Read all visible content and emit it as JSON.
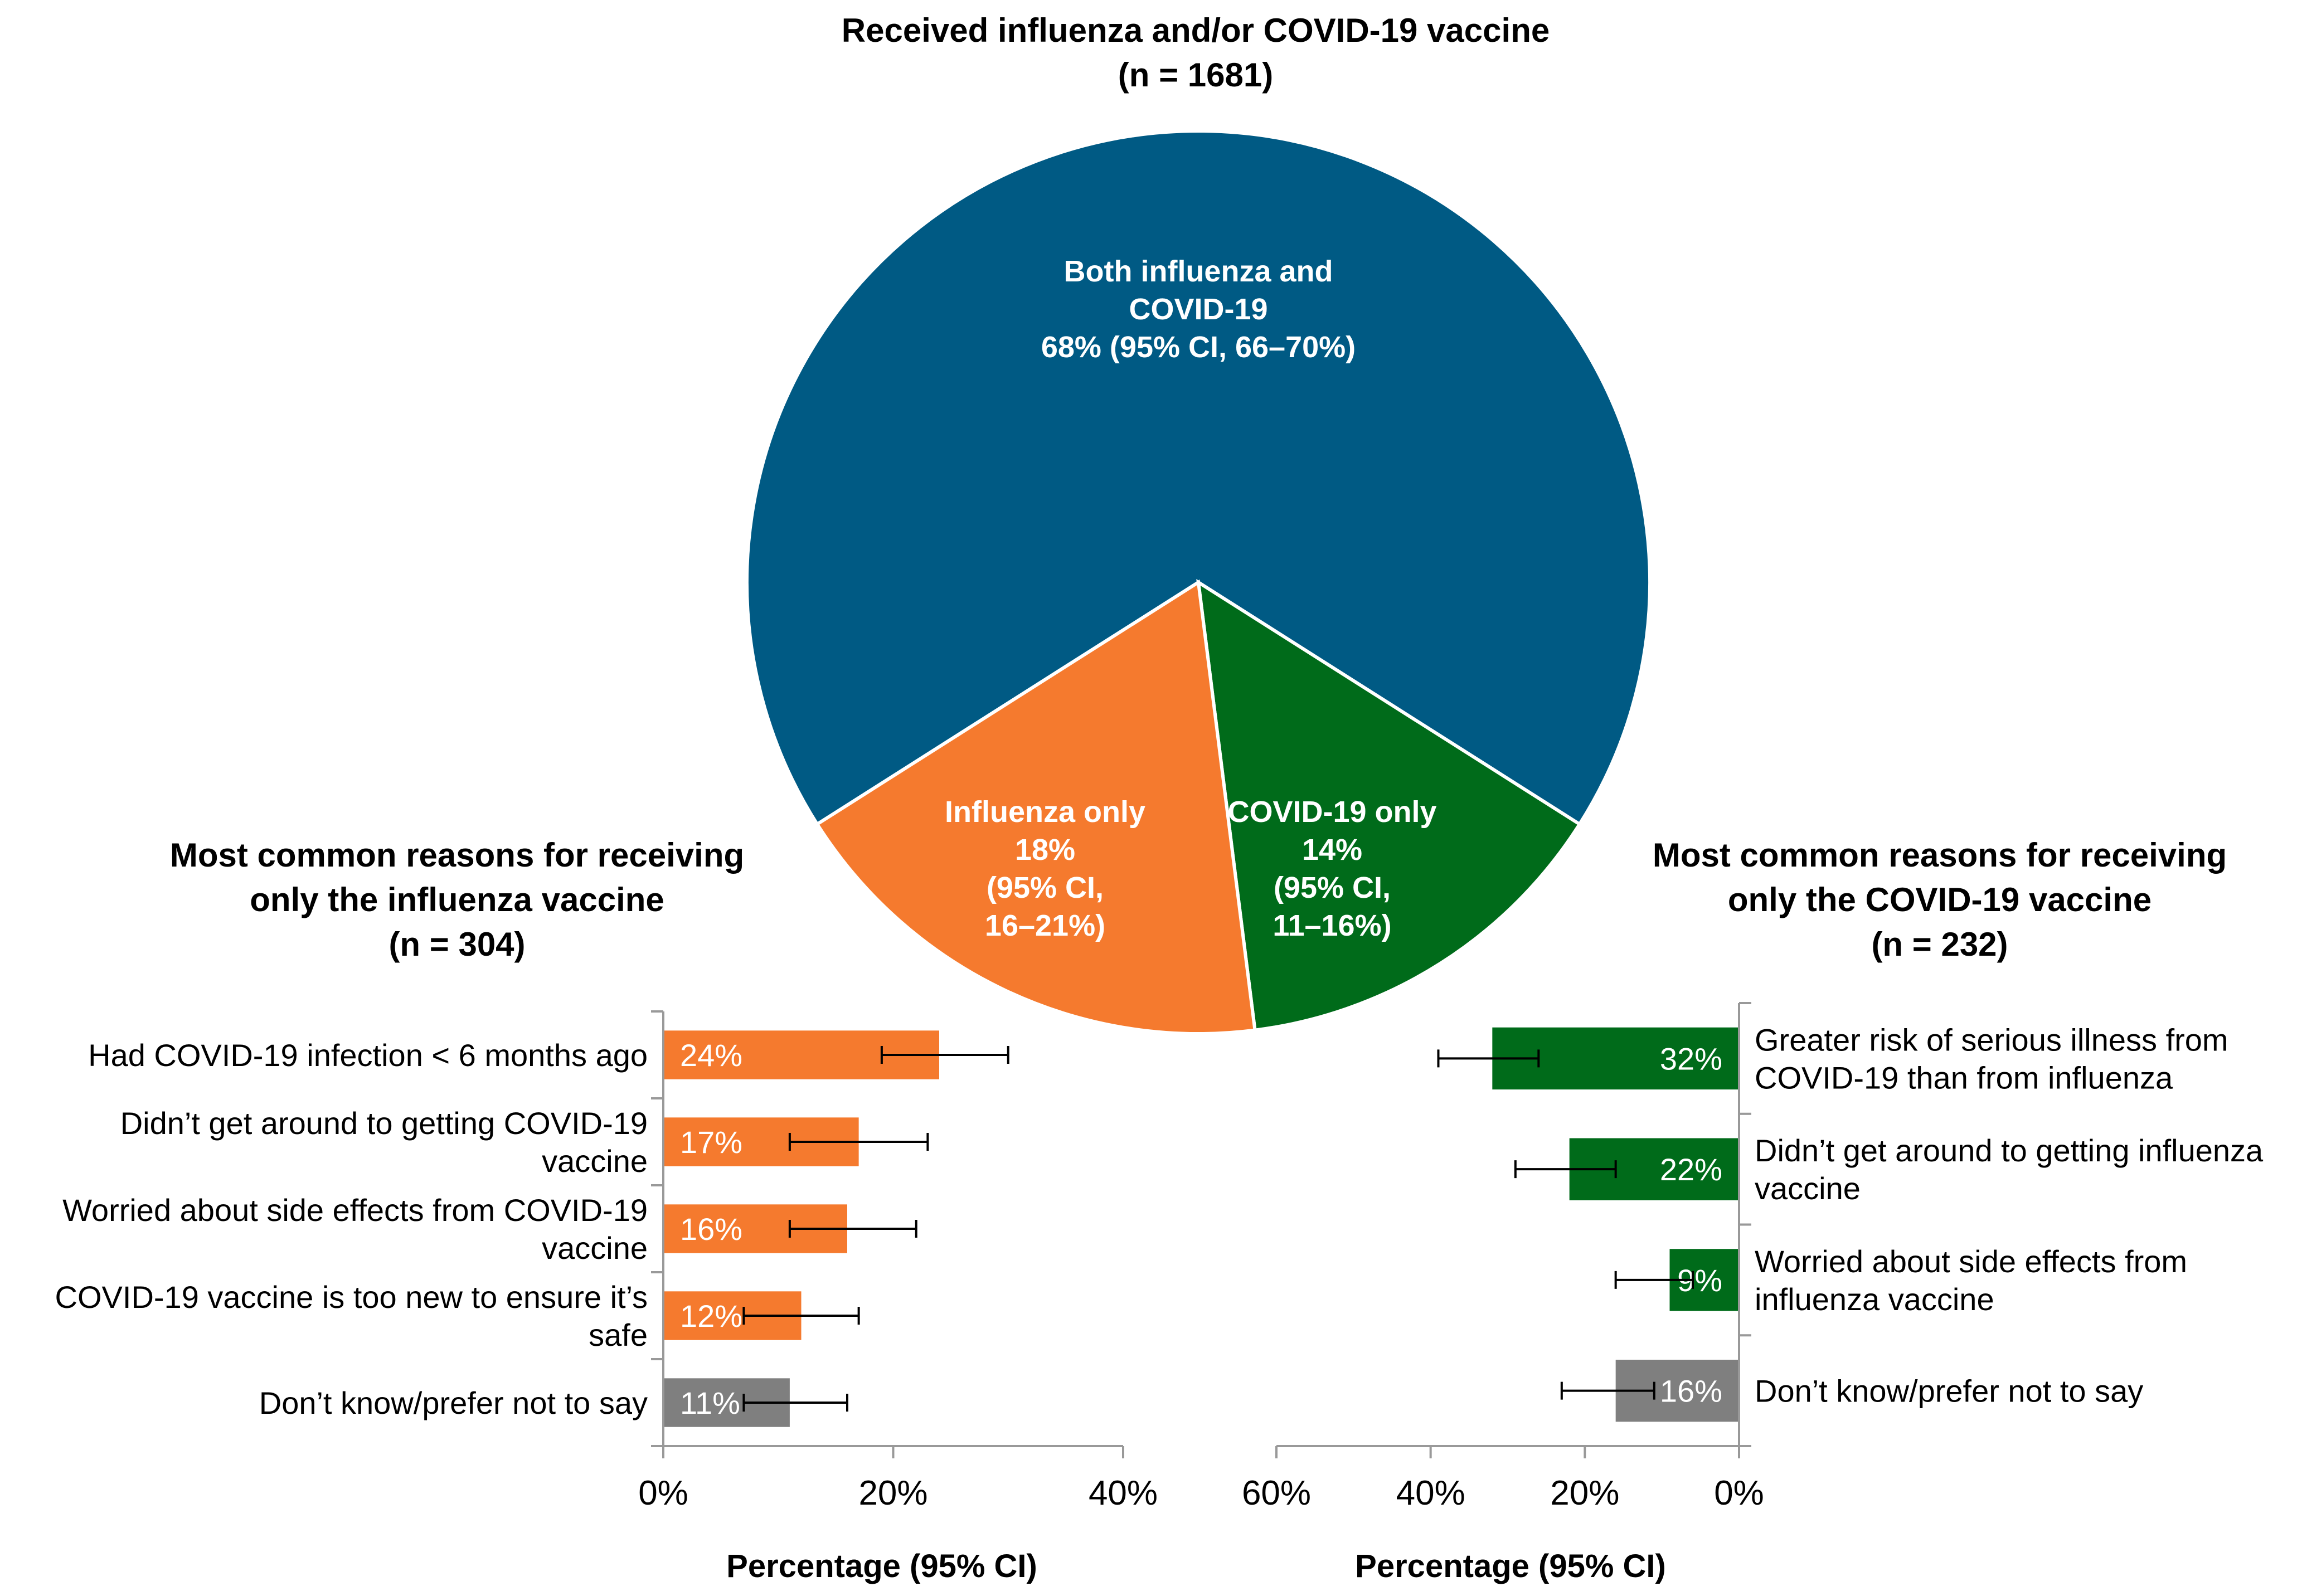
{
  "chart_data": [
    {
      "type": "pie",
      "title": "Received influenza and/or COVID-19 vaccine",
      "subtitle": "(n = 1681)",
      "slices": [
        {
          "label_lines": [
            "Both influenza and",
            "COVID-19",
            "68% (95% CI, 66–70%)"
          ],
          "value": 68,
          "color": "#005a84"
        },
        {
          "label_lines": [
            "COVID-19 only",
            "14%",
            "(95% CI,",
            "11–16%)"
          ],
          "value": 14,
          "color": "#006b1a"
        },
        {
          "label_lines": [
            "Influenza only",
            "18%",
            "(95% CI,",
            "16–21%)"
          ],
          "value": 18,
          "color": "#f57a2e"
        }
      ]
    },
    {
      "type": "bar",
      "orientation": "horizontal",
      "title_lines": [
        "Most common reasons for receiving",
        "only the influenza vaccine",
        "(n = 304)"
      ],
      "categories": [
        [
          "Had COVID-19 infection < 6 months ago"
        ],
        [
          "Didn’t get around to getting COVID-19",
          "vaccine"
        ],
        [
          "Worried about side effects from COVID-19",
          "vaccine"
        ],
        [
          "COVID-19 vaccine is too new to ensure it’s",
          "safe"
        ],
        [
          "Don’t know/prefer not to say"
        ]
      ],
      "values": [
        24,
        17,
        16,
        12,
        11
      ],
      "value_labels": [
        "24%",
        "17%",
        "16%",
        "12%",
        "11%"
      ],
      "ci_low": [
        19,
        11,
        11,
        7,
        7
      ],
      "ci_high": [
        30,
        23,
        22,
        17,
        16
      ],
      "colors": [
        "#f57a2e",
        "#f57a2e",
        "#f57a2e",
        "#f57a2e",
        "#7f7f7f"
      ],
      "xlim": [
        0,
        40
      ],
      "xticks": [
        "0%",
        "20%",
        "40%"
      ],
      "xlabel": "Percentage (95% CI)"
    },
    {
      "type": "bar",
      "orientation": "horizontal",
      "direction": "reversed",
      "title_lines": [
        "Most common reasons for receiving",
        "only the COVID-19 vaccine",
        "(n = 232)"
      ],
      "categories": [
        [
          "Greater risk of serious illness from",
          "COVID-19 than from influenza"
        ],
        [
          "Didn’t get around to getting influenza",
          "vaccine"
        ],
        [
          "Worried about side effects from",
          "influenza vaccine"
        ],
        [
          "Don’t know/prefer not to say"
        ]
      ],
      "values": [
        32,
        22,
        9,
        16
      ],
      "value_labels": [
        "32%",
        "22%",
        "9%",
        "16%"
      ],
      "ci_low": [
        26,
        16,
        6,
        11
      ],
      "ci_high": [
        39,
        29,
        16,
        23
      ],
      "colors": [
        "#006b1a",
        "#006b1a",
        "#006b1a",
        "#7f7f7f"
      ],
      "xlim": [
        0,
        60
      ],
      "xticks": [
        "60%",
        "40%",
        "20%",
        "0%"
      ],
      "xlabel": "Percentage (95% CI)"
    }
  ]
}
